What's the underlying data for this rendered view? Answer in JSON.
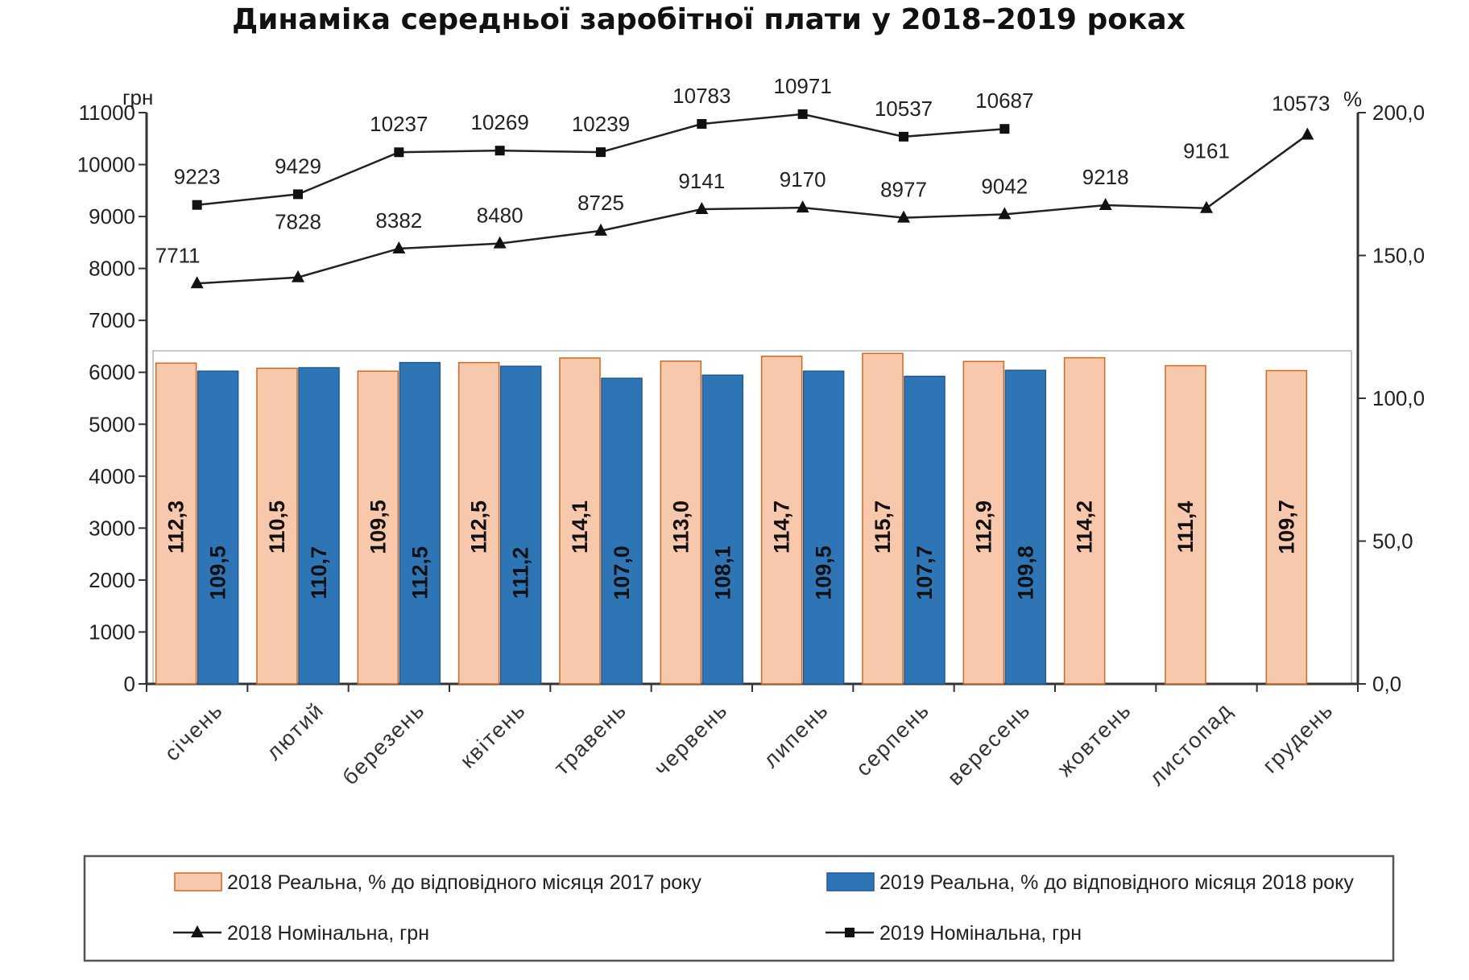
{
  "chart_data": {
    "type": "bar",
    "title": "Динаміка середньої заробітної плати у 2018–2019 роках",
    "categories": [
      "січень",
      "лютий",
      "березень",
      "квітень",
      "травень",
      "червень",
      "липень",
      "серпень",
      "вересень",
      "жовтень",
      "листопад",
      "грудень"
    ],
    "y_left": {
      "unit": "грн",
      "ylim": [
        0,
        11000
      ],
      "ticks": [
        "0",
        "1000",
        "2000",
        "3000",
        "4000",
        "5000",
        "6000",
        "7000",
        "8000",
        "9000",
        "10000",
        "11000"
      ]
    },
    "y_right": {
      "unit": "%",
      "ylim": [
        0,
        200
      ],
      "ticks": [
        "0,0",
        "50,0",
        "100,0",
        "150,0",
        "200,0"
      ]
    },
    "bar_series": [
      {
        "name": "2018 Реальна, % до відповідного  місяця 2017 року",
        "color": "#F8C8AD",
        "stroke": "#D2691E",
        "values": [
          112.3,
          110.5,
          109.5,
          112.5,
          114.1,
          113.0,
          114.7,
          115.7,
          112.9,
          114.2,
          111.4,
          109.7
        ],
        "labels": [
          "112,3",
          "110,5",
          "109,5",
          "112,5",
          "114,1",
          "113,0",
          "114,7",
          "115,7",
          "112,9",
          "114,2",
          "111,4",
          "109,7"
        ]
      },
      {
        "name": "2019 Реальна, % до відповідного  місяця 2018 року",
        "color": "#2E75B6",
        "stroke": "#1F5B96",
        "values": [
          109.5,
          110.7,
          112.5,
          111.2,
          107.0,
          108.1,
          109.5,
          107.7,
          109.8,
          null,
          null,
          null
        ],
        "labels": [
          "109,5",
          "110,7",
          "112,5",
          "111,2",
          "107,0",
          "108,1",
          "109,5",
          "107,7",
          "109,8",
          "",
          "",
          ""
        ]
      }
    ],
    "line_series": [
      {
        "name": "2018 Номінальна, грн",
        "marker": "triangle",
        "values": [
          7711,
          7828,
          8382,
          8480,
          8725,
          9141,
          9170,
          8977,
          9042,
          9218,
          9161,
          10573
        ],
        "labels": [
          "7711",
          "7828",
          "8382",
          "8480",
          "8725",
          "9141",
          "9170",
          "8977",
          "9042",
          "9218",
          "9161",
          "10573"
        ]
      },
      {
        "name": "2019 Номінальна, грн",
        "marker": "square",
        "values": [
          9223,
          9429,
          10237,
          10269,
          10239,
          10783,
          10971,
          10537,
          10687,
          null,
          null,
          null
        ],
        "labels": [
          "9223",
          "9429",
          "10237",
          "10269",
          "10239",
          "10783",
          "10971",
          "10537",
          "10687",
          "",
          "",
          ""
        ]
      }
    ],
    "legend_position": "bottom"
  }
}
